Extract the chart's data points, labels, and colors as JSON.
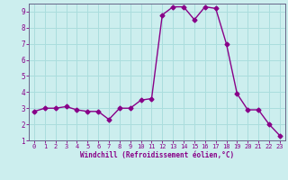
{
  "x": [
    0,
    1,
    2,
    3,
    4,
    5,
    6,
    7,
    8,
    9,
    10,
    11,
    12,
    13,
    14,
    15,
    16,
    17,
    18,
    19,
    20,
    21,
    22,
    23
  ],
  "y": [
    2.8,
    3.0,
    3.0,
    3.1,
    2.9,
    2.8,
    2.8,
    2.3,
    3.0,
    3.0,
    3.5,
    3.6,
    8.8,
    9.3,
    9.3,
    8.5,
    9.3,
    9.2,
    7.0,
    3.9,
    2.9,
    2.9,
    2.0,
    1.3
  ],
  "line_color": "#880088",
  "marker": "D",
  "marker_size": 2.5,
  "bg_color": "#cceeee",
  "grid_color": "#aadddd",
  "xlabel": "Windchill (Refroidissement éolien,°C)",
  "xlabel_color": "#880088",
  "tick_color": "#880088",
  "ylim": [
    1,
    9.5
  ],
  "xlim": [
    -0.5,
    23.5
  ],
  "yticks": [
    1,
    2,
    3,
    4,
    5,
    6,
    7,
    8,
    9
  ],
  "xticks": [
    0,
    1,
    2,
    3,
    4,
    5,
    6,
    7,
    8,
    9,
    10,
    11,
    12,
    13,
    14,
    15,
    16,
    17,
    18,
    19,
    20,
    21,
    22,
    23
  ],
  "line_width": 1.0,
  "spine_color": "#666688"
}
